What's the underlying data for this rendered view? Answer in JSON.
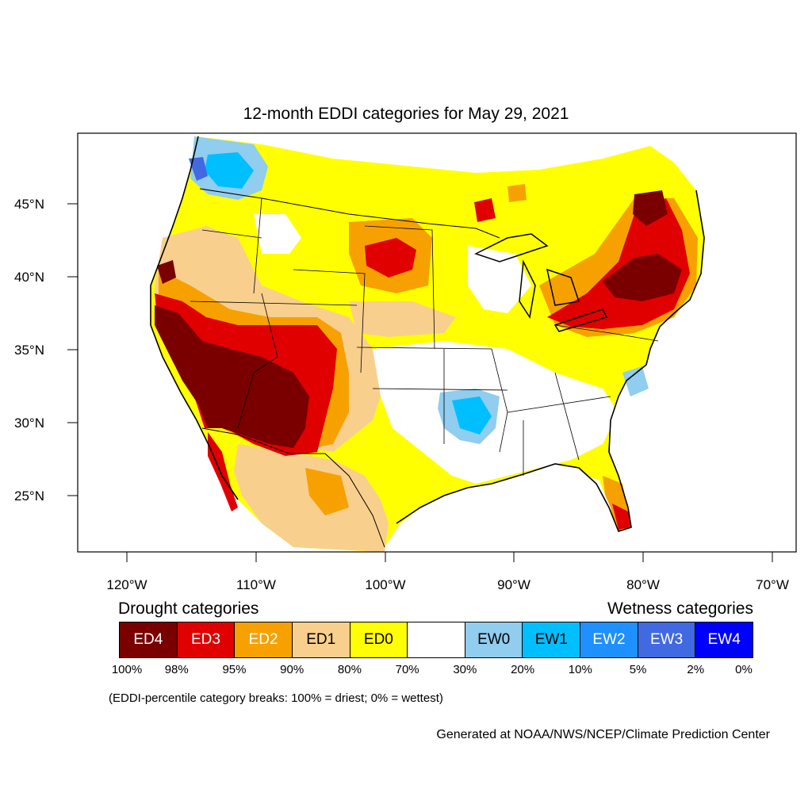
{
  "title": "12-month EDDI categories for May 29, 2021",
  "map": {
    "lat_ticks": [
      "45°N",
      "40°N",
      "35°N",
      "30°N",
      "25°N"
    ],
    "lon_ticks": [
      "120°W",
      "110°W",
      "100°W",
      "90°W",
      "80°W",
      "70°W"
    ],
    "colors": {
      "ED4": "#7a0000",
      "ED3": "#e00000",
      "ED2": "#f7a100",
      "ED1": "#f9cf8e",
      "ED0": "#ffff00",
      "neutral": "#ffffff",
      "EW0": "#90cdef",
      "EW1": "#00bfff",
      "EW2": "#1e90ff",
      "EW3": "#4169e1",
      "EW4": "#0000ff"
    }
  },
  "legend": {
    "drought_heading": "Drought categories",
    "wetness_heading": "Wetness categories",
    "categories": [
      {
        "label": "ED4",
        "color": "#7a0000",
        "text_color": "#ffffff"
      },
      {
        "label": "ED3",
        "color": "#e00000",
        "text_color": "#ffffff"
      },
      {
        "label": "ED2",
        "color": "#f7a100",
        "text_color": "#ffffff"
      },
      {
        "label": "ED1",
        "color": "#f9cf8e",
        "text_color": "#000000"
      },
      {
        "label": "ED0",
        "color": "#ffff00",
        "text_color": "#000000"
      },
      {
        "label": "",
        "color": "#ffffff",
        "text_color": "#000000"
      },
      {
        "label": "EW0",
        "color": "#90cdef",
        "text_color": "#000000"
      },
      {
        "label": "EW1",
        "color": "#00bfff",
        "text_color": "#000000"
      },
      {
        "label": "EW2",
        "color": "#1e90ff",
        "text_color": "#ffffff"
      },
      {
        "label": "EW3",
        "color": "#4169e1",
        "text_color": "#ffffff"
      },
      {
        "label": "EW4",
        "color": "#0000ff",
        "text_color": "#ffffff"
      }
    ],
    "breaks": [
      "100%",
      "98%",
      "95%",
      "90%",
      "80%",
      "70%",
      "30%",
      "20%",
      "10%",
      "5%",
      "2%",
      "0%"
    ],
    "note": "(EDDI-percentile category breaks: 100% = driest; 0% = wettest)"
  },
  "credit": "Generated at NOAA/NWS/NCEP/Climate Prediction Center"
}
